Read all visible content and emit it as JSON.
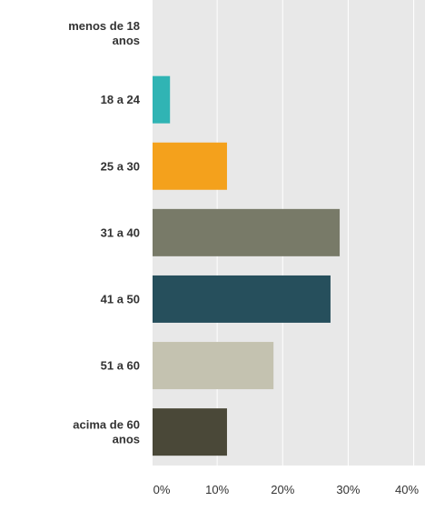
{
  "chart_data": {
    "type": "bar",
    "orientation": "horizontal",
    "categories": [
      [
        "menos de 18",
        "anos"
      ],
      [
        "18 a 24"
      ],
      [
        "25 a 30"
      ],
      [
        "31 a 40"
      ],
      [
        "41 a 50"
      ],
      [
        "51 a 60"
      ],
      [
        "acima de 60",
        "anos"
      ]
    ],
    "values": [
      0,
      2.8,
      11.5,
      28.7,
      27.3,
      18.6,
      11.5
    ],
    "colors": [
      "#7d9a3c",
      "#30b4b4",
      "#f4a11c",
      "#787a68",
      "#264f5c",
      "#c4c2b0",
      "#4a4838"
    ],
    "xlim": [
      0,
      42
    ],
    "xticks": [
      0,
      10,
      20,
      30,
      40
    ],
    "xtick_labels": [
      "0%",
      "10%",
      "20%",
      "30%",
      "40%"
    ],
    "unit": "%",
    "grid": true,
    "background": "#e8e8e8",
    "gridline_color": "#ffffff",
    "legend": "none"
  }
}
